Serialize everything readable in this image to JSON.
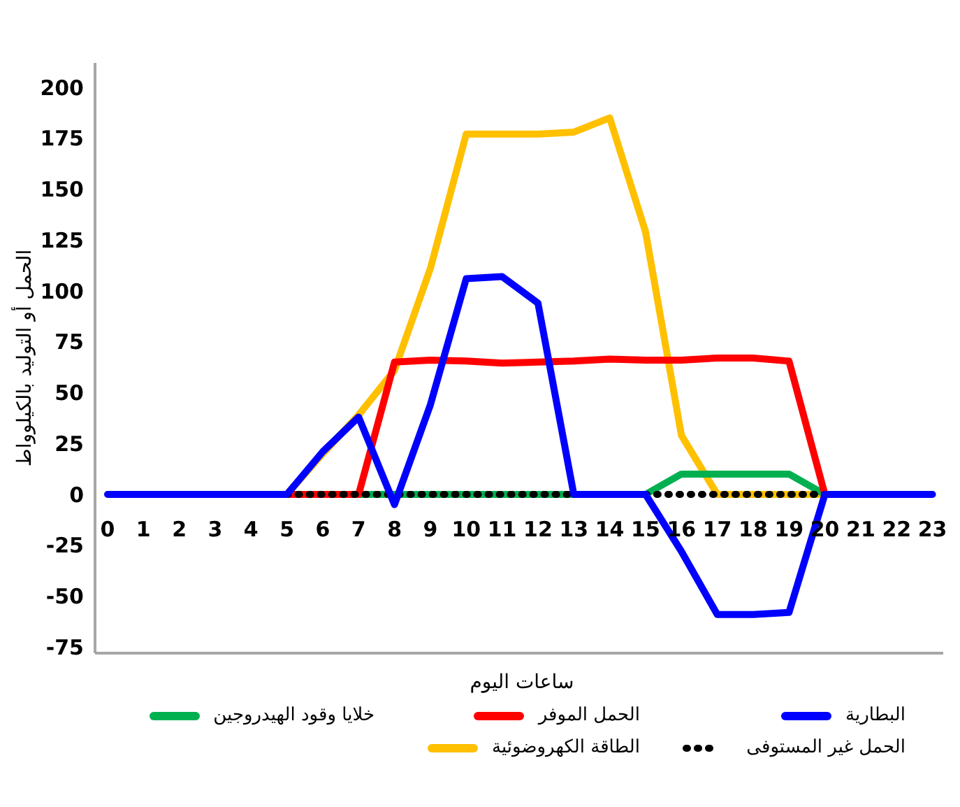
{
  "chart_data": {
    "type": "line",
    "xlabel": "ساعات اليوم",
    "ylabel": "الحمل أو التوليد بالكيلوواط",
    "x": [
      0,
      1,
      2,
      3,
      4,
      5,
      6,
      7,
      8,
      9,
      10,
      11,
      12,
      13,
      14,
      15,
      16,
      17,
      18,
      19,
      20,
      21,
      22,
      23
    ],
    "xlim": [
      -0.35,
      23.3
    ],
    "xticks": [
      0,
      1,
      2,
      3,
      4,
      5,
      6,
      7,
      8,
      9,
      10,
      11,
      12,
      13,
      14,
      15,
      16,
      17,
      18,
      19,
      20,
      21,
      22,
      23
    ],
    "ylim": [
      -78,
      212
    ],
    "yticks": [
      -75,
      -50,
      -25,
      0,
      25,
      50,
      75,
      100,
      125,
      150,
      175,
      200
    ],
    "legend": "bottom",
    "marker": "none",
    "series": [
      {
        "name": "الطاقة الكهروضوئية",
        "color": "#ffc000",
        "line_style": "solid",
        "values": [
          null,
          null,
          null,
          null,
          null,
          0,
          20,
          39,
          61,
          111,
          177,
          177,
          177,
          178,
          185,
          129,
          29,
          0,
          0,
          0,
          0,
          null,
          null,
          null
        ]
      },
      {
        "name": "خلايا وقود الهيدروجين",
        "color": "#00b050",
        "line_style": "solid",
        "values": [
          null,
          null,
          null,
          null,
          null,
          null,
          null,
          0,
          0,
          0,
          0,
          0,
          0,
          0,
          null,
          0,
          10,
          10,
          10,
          10,
          0,
          null,
          null,
          null
        ]
      },
      {
        "name": "الحمل الموفر",
        "color": "#ff0000",
        "line_style": "solid",
        "values": [
          null,
          null,
          null,
          null,
          null,
          0,
          0,
          0,
          65,
          66,
          65.5,
          64.5,
          65,
          65.5,
          66.5,
          66,
          66,
          67,
          67,
          65.5,
          0,
          null,
          null,
          null
        ]
      },
      {
        "name": "الحمل غير المستوفى",
        "color": "#000000",
        "line_style": "dotted",
        "values": [
          null,
          null,
          null,
          null,
          null,
          0,
          0,
          0,
          0,
          0,
          0,
          0,
          0,
          0,
          null,
          0,
          0,
          0,
          0,
          0,
          0,
          null,
          null,
          null
        ]
      },
      {
        "name": "البطارية",
        "color": "#0000ff",
        "line_style": "solid",
        "values": [
          0,
          0,
          0,
          0,
          0,
          0,
          21,
          38,
          -5,
          44,
          106,
          107,
          94,
          0,
          0,
          0,
          -28,
          -59,
          -59,
          -58,
          0,
          0,
          0,
          0
        ]
      }
    ]
  }
}
